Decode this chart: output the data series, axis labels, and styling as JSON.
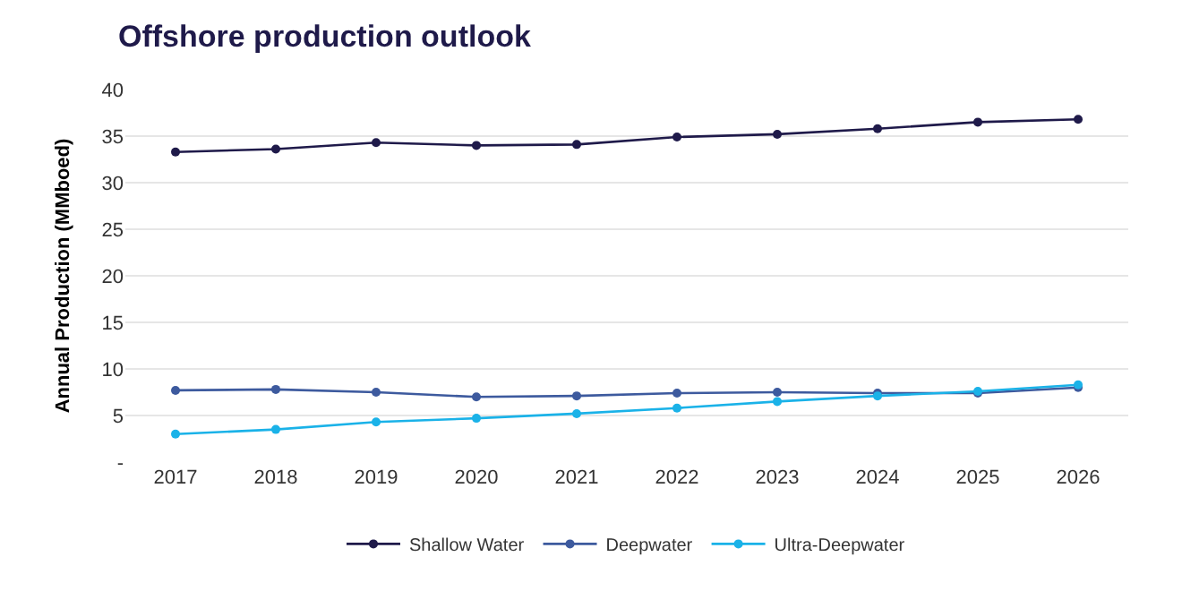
{
  "chart_data": {
    "type": "line",
    "title": "Offshore production outlook",
    "ylabel": "Annual Production (MMboed)",
    "categories": [
      "2017",
      "2018",
      "2019",
      "2020",
      "2021",
      "2022",
      "2023",
      "2024",
      "2025",
      "2026"
    ],
    "series": [
      {
        "name": "Shallow Water",
        "color": "#1f1a4a",
        "values": [
          33.3,
          33.6,
          34.3,
          34.0,
          34.1,
          34.9,
          35.2,
          35.8,
          36.5,
          36.8
        ]
      },
      {
        "name": "Deepwater",
        "color": "#3d5a9e",
        "values": [
          7.7,
          7.8,
          7.5,
          7.0,
          7.1,
          7.4,
          7.5,
          7.4,
          7.4,
          8.0
        ]
      },
      {
        "name": "Ultra-Deepwater",
        "color": "#1ab2e8",
        "values": [
          3.0,
          3.5,
          4.3,
          4.7,
          5.2,
          5.8,
          6.5,
          7.1,
          7.6,
          8.3
        ]
      }
    ],
    "ylim": [
      0,
      40
    ],
    "yticks": [
      {
        "value": 0,
        "label": "-"
      },
      5,
      10,
      15,
      20,
      25,
      30,
      35,
      40
    ],
    "grid": "y",
    "legend": "bottom",
    "marker": "circle",
    "line_style": "solid"
  }
}
